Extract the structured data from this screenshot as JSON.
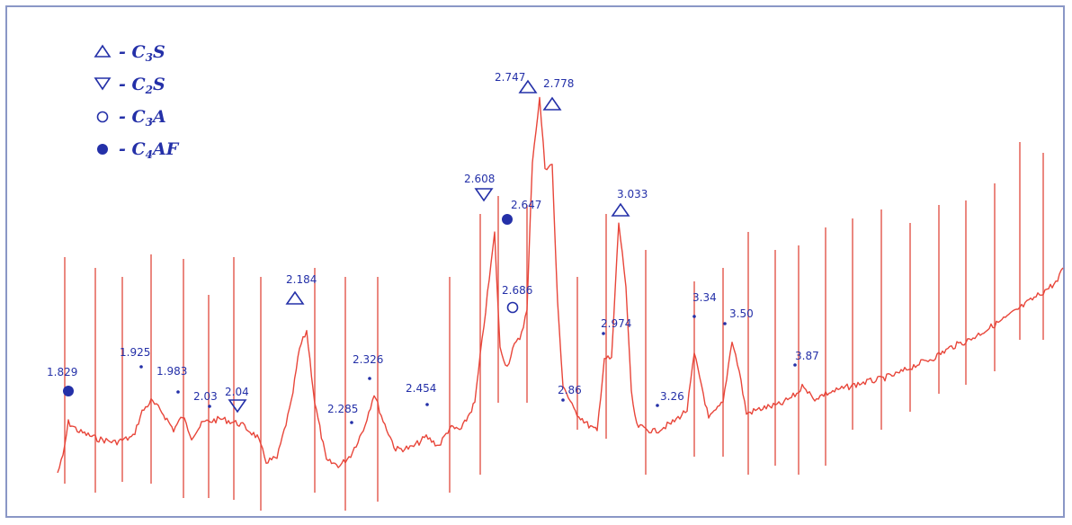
{
  "chart_data": {
    "type": "line",
    "title": "",
    "xlabel": "",
    "ylabel": "",
    "grid": false,
    "legend_position": "top-left",
    "colors": {
      "trace": "#e8463a",
      "reference": "#e0483c",
      "text": "#2430a8"
    },
    "legend": [
      {
        "marker": "triangle-up",
        "label": "- C3S",
        "phase": "C3S"
      },
      {
        "marker": "triangle-down",
        "label": "- C2S",
        "phase": "C2S"
      },
      {
        "marker": "circle-open",
        "label": "- C3A",
        "phase": "C3A"
      },
      {
        "marker": "circle-filled",
        "label": "- C4AF",
        "phase": "C4AF"
      }
    ],
    "peak_labels": [
      {
        "text": "1.829",
        "marker": "circle-filled"
      },
      {
        "text": "1.925",
        "marker": "dot"
      },
      {
        "text": "1.983",
        "marker": "dot"
      },
      {
        "text": "2.03",
        "marker": "dot"
      },
      {
        "text": "2.04",
        "marker": "triangle-down"
      },
      {
        "text": "2.184",
        "marker": "triangle-up"
      },
      {
        "text": "2.285",
        "marker": "dot"
      },
      {
        "text": "2.326",
        "marker": "dot"
      },
      {
        "text": "2.454",
        "marker": "dot"
      },
      {
        "text": "2.608",
        "marker": "triangle-down"
      },
      {
        "text": "2.647",
        "marker": "circle-filled"
      },
      {
        "text": "2.686",
        "marker": "circle-open"
      },
      {
        "text": "2.747",
        "marker": "triangle-up"
      },
      {
        "text": "2.778",
        "marker": "triangle-up"
      },
      {
        "text": "2.86",
        "marker": "dot"
      },
      {
        "text": "2.974",
        "marker": "dot"
      },
      {
        "text": "3.033",
        "marker": "triangle-up"
      },
      {
        "text": "3.26",
        "marker": "dot"
      },
      {
        "text": "3.34",
        "marker": "dot"
      },
      {
        "text": "3.50",
        "marker": "dot"
      },
      {
        "text": "3.87",
        "marker": "dot"
      }
    ],
    "reference_line_count": 30
  }
}
